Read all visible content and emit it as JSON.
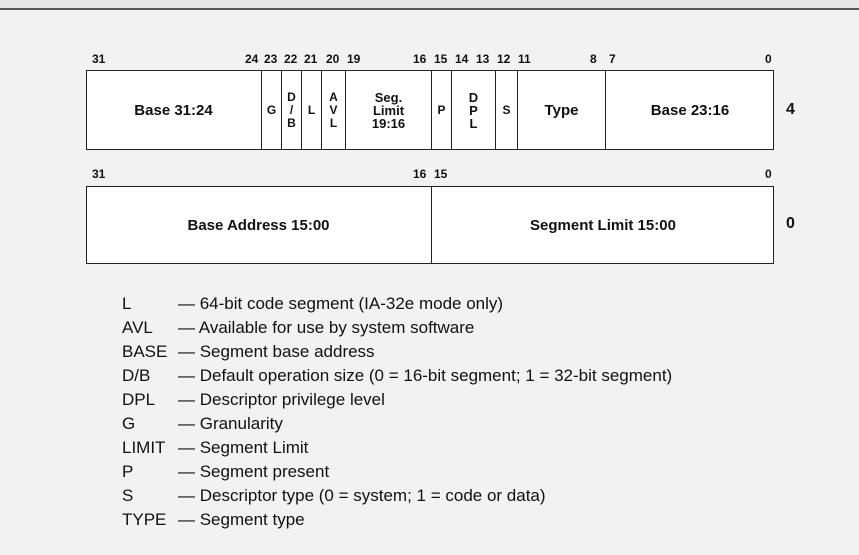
{
  "upper_word": {
    "offset": "4",
    "bit_labels": [
      {
        "text": "31",
        "bit": 31
      },
      {
        "text": "24",
        "bit": 24
      },
      {
        "text": "23",
        "bit": 23
      },
      {
        "text": "22",
        "bit": 22
      },
      {
        "text": "21",
        "bit": 21
      },
      {
        "text": "20",
        "bit": 20
      },
      {
        "text": "19",
        "bit": 19
      },
      {
        "text": "16",
        "bit": 16
      },
      {
        "text": "15",
        "bit": 15
      },
      {
        "text": "14",
        "bit": 14
      },
      {
        "text": "13",
        "bit": 13
      },
      {
        "text": "12",
        "bit": 12
      },
      {
        "text": "11",
        "bit": 11
      },
      {
        "text": "8",
        "bit": 8
      },
      {
        "text": "7",
        "bit": 7
      },
      {
        "text": "0",
        "bit": 0
      }
    ],
    "fields": [
      {
        "label": "Base 31:24",
        "hi": 31,
        "lo": 24
      },
      {
        "label": "G",
        "hi": 23,
        "lo": 23
      },
      {
        "label": "D\n/\nB",
        "hi": 22,
        "lo": 22
      },
      {
        "label": "L",
        "hi": 21,
        "lo": 21
      },
      {
        "label": "A\nV\nL",
        "hi": 20,
        "lo": 20
      },
      {
        "label": "Seg.\nLimit\n19:16",
        "hi": 19,
        "lo": 16
      },
      {
        "label": "P",
        "hi": 15,
        "lo": 15
      },
      {
        "label": "D\nP\nL",
        "hi": 14,
        "lo": 13
      },
      {
        "label": "S",
        "hi": 12,
        "lo": 12
      },
      {
        "label": "Type",
        "hi": 11,
        "lo": 8
      },
      {
        "label": "Base 23:16",
        "hi": 7,
        "lo": 0
      }
    ]
  },
  "lower_word": {
    "offset": "0",
    "bit_labels": [
      {
        "text": "31",
        "bit": 31
      },
      {
        "text": "16",
        "bit": 16
      },
      {
        "text": "15",
        "bit": 15
      },
      {
        "text": "0",
        "bit": 0
      }
    ],
    "fields": [
      {
        "label": "Base Address 15:00",
        "hi": 31,
        "lo": 16
      },
      {
        "label": "Segment Limit 15:00",
        "hi": 15,
        "lo": 0
      }
    ]
  },
  "legend": [
    {
      "term": "L",
      "desc": "— 64-bit code segment (IA-32e mode only)"
    },
    {
      "term": "AVL",
      "desc": "— Available for use by system software"
    },
    {
      "term": "BASE",
      "desc": "— Segment base address"
    },
    {
      "term": "D/B",
      "desc": "— Default operation size (0 = 16-bit segment; 1 = 32-bit segment)"
    },
    {
      "term": "DPL",
      "desc": "— Descriptor privilege level"
    },
    {
      "term": "G",
      "desc": "— Granularity"
    },
    {
      "term": "LIMIT",
      "desc": "— Segment Limit"
    },
    {
      "term": "P",
      "desc": "— Segment present"
    },
    {
      "term": "S",
      "desc": "— Descriptor type (0 = system; 1 = code or data)"
    },
    {
      "term": "TYPE",
      "desc": "— Segment type"
    }
  ]
}
